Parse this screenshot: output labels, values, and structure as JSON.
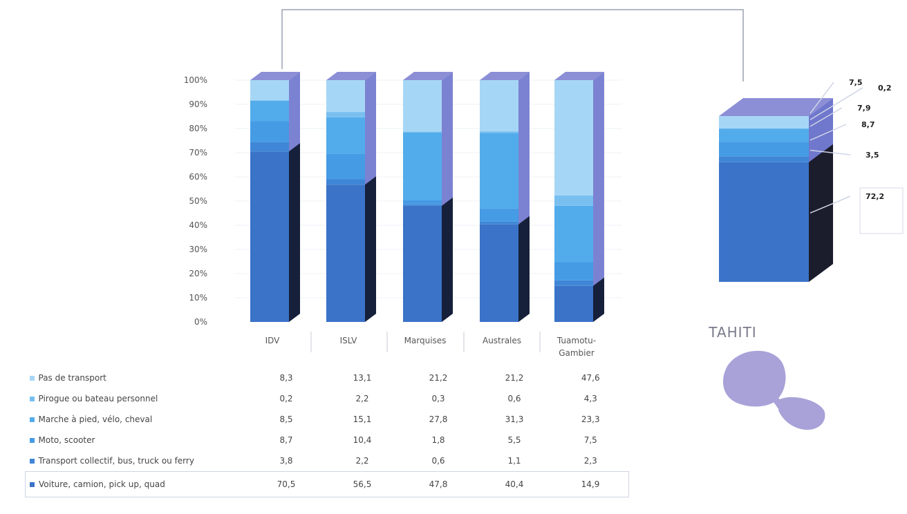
{
  "chart_data": [
    {
      "type": "bar",
      "stacked": true,
      "percent": true,
      "categories": [
        "IDV",
        "ISLV",
        "Marquises",
        "Australes",
        "Tuamotu-\nGambier"
      ],
      "y_ticks": [
        "0%",
        "10%",
        "20%",
        "30%",
        "40%",
        "50%",
        "60%",
        "70%",
        "80%",
        "90%",
        "100%"
      ],
      "ylim": [
        0,
        100
      ],
      "series": [
        {
          "name": "Voiture, camion, pick up, quad",
          "values": [
            "70,5",
            "56,5",
            "47,8",
            "40,4",
            "14,9"
          ],
          "color": "#3a73c8"
        },
        {
          "name": "Transport collectif, bus, truck ou ferry",
          "values": [
            "3,8",
            "2,2",
            "0,6",
            "1,1",
            "2,3"
          ],
          "color": "#3f86d6"
        },
        {
          "name": "Moto, scooter",
          "values": [
            "8,7",
            "10,4",
            "1,8",
            "5,5",
            "7,5"
          ],
          "color": "#459be4"
        },
        {
          "name": "Marche à pied, vélo, cheval",
          "values": [
            "8,5",
            "15,1",
            "27,8",
            "31,3",
            "23,3"
          ],
          "color": "#52aceb"
        },
        {
          "name": "Pirogue ou bateau personnel",
          "values": [
            "0,2",
            "2,2",
            "0,3",
            "0,6",
            "4,3"
          ],
          "color": "#78bff0"
        },
        {
          "name": "Pas de transport",
          "values": [
            "8,3",
            "13,1",
            "21,2",
            "21,2",
            "47,6"
          ],
          "color": "#a6d6f5"
        }
      ]
    },
    {
      "type": "bar",
      "stacked": true,
      "percent": true,
      "categories": [
        "TAHITI"
      ],
      "series": [
        {
          "values": [
            "72,2"
          ],
          "color": "#3a73c8"
        },
        {
          "values": [
            "3,5"
          ],
          "color": "#3f86d6"
        },
        {
          "values": [
            "8,7"
          ],
          "color": "#459be4"
        },
        {
          "values": [
            "7,9"
          ],
          "color": "#52aceb"
        },
        {
          "values": [
            "0,2"
          ],
          "color": "#78bff0"
        },
        {
          "values": [
            "7,5"
          ],
          "color": "#a6d6f5"
        }
      ]
    }
  ],
  "colors": {
    "side_shade": "#16203a",
    "top_face": "#8c8ed6",
    "island": "#a8a2d8",
    "connector": "#9aa0b4"
  },
  "table": {
    "rows": [
      {
        "label": "Pas de transport",
        "values": [
          "8,3",
          "13,1",
          "21,2",
          "21,2",
          "47,6"
        ]
      },
      {
        "label": "Pirogue ou bateau personnel",
        "values": [
          "0,2",
          "2,2",
          "0,3",
          "0,6",
          "4,3"
        ]
      },
      {
        "label": "Marche à pied, vélo, cheval",
        "values": [
          "8,5",
          "15,1",
          "27,8",
          "31,3",
          "23,3"
        ]
      },
      {
        "label": "Moto, scooter",
        "values": [
          "8,7",
          "10,4",
          "1,8",
          "5,5",
          "7,5"
        ]
      },
      {
        "label": "Transport collectif, bus, truck ou ferry",
        "values": [
          "3,8",
          "2,2",
          "0,6",
          "1,1",
          "2,3"
        ]
      },
      {
        "label": "Voiture, camion, pick up, quad",
        "values": [
          "70,5",
          "56,5",
          "47,8",
          "40,4",
          "14,9"
        ]
      }
    ]
  },
  "tahiti_title": "TAHITI"
}
